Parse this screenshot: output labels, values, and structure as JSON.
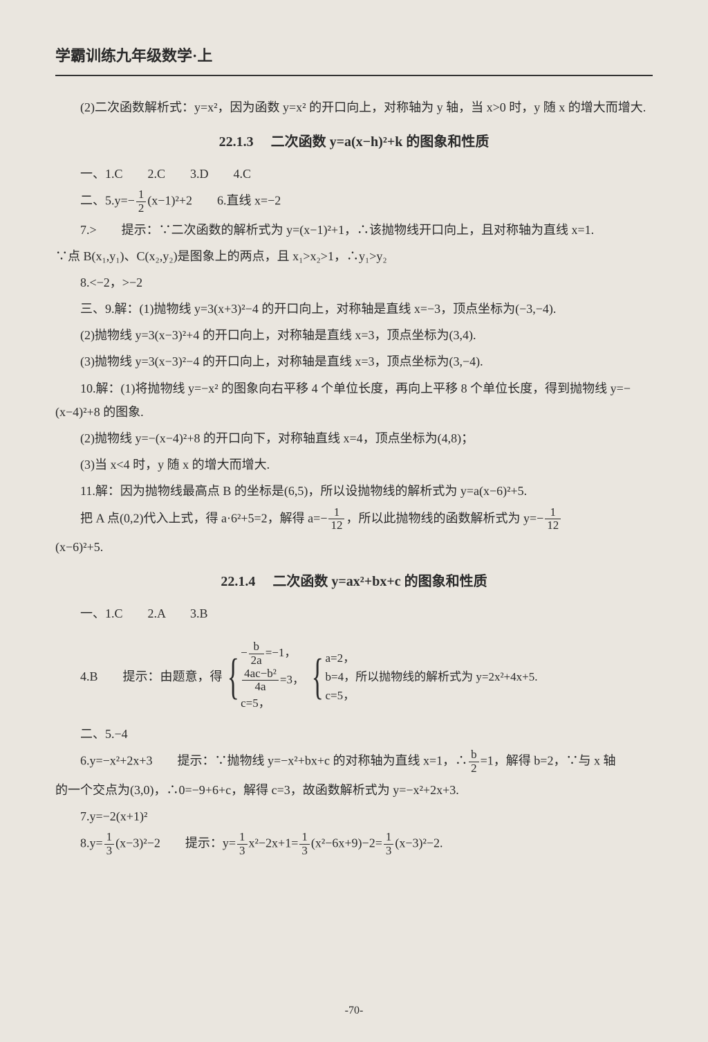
{
  "header": "学霸训练九年级数学·上",
  "p2": "(2)二次函数解析式：y=x²，因为函数 y=x² 的开口向上，对称轴为 y 轴，当 x>0 时，y 随 x 的增大而增大.",
  "sec1": "22.1.3 　二次函数 y=a(x−h)²+k 的图象和性质",
  "l1": "一、1.C　　2.C　　3.D　　4.C",
  "l2a": "二、5.y=−",
  "l2b": "(x−1)²+2　　6.直线 x=−2",
  "l3": "7.>　　提示：∵二次函数的解析式为 y=(x−1)²+1，∴该抛物线开口向上，且对称轴为直线 x=1.",
  "l3b": "∵点 B(x₁,y₁)、C(x₂,y₂)是图象上的两点，且 x₁>x₂>1，∴y₁>y₂",
  "l4": "8.<−2，>−2",
  "l5": "三、9.解：(1)抛物线 y=3(x+3)²−4 的开口向上，对称轴是直线 x=−3，顶点坐标为(−3,−4).",
  "l6": "(2)抛物线 y=3(x−3)²+4 的开口向上，对称轴是直线 x=3，顶点坐标为(3,4).",
  "l7": "(3)抛物线 y=3(x−3)²−4 的开口向上，对称轴是直线 x=3，顶点坐标为(3,−4).",
  "l8": "10.解：(1)将抛物线 y=−x² 的图象向右平移 4 个单位长度，再向上平移 8 个单位长度，得到抛物线 y=−(x−4)²+8 的图象.",
  "l9": "(2)抛物线 y=−(x−4)²+8 的开口向下，对称轴直线 x=4，顶点坐标为(4,8)；",
  "l10": "(3)当 x<4 时，y 随 x 的增大而增大.",
  "l11": "11.解：因为抛物线最高点 B 的坐标是(6,5)，所以设抛物线的解析式为 y=a(x−6)²+5.",
  "l12a": "把 A 点(0,2)代入上式，得 a·6²+5=2，解得 a=−",
  "l12b": "，所以此抛物线的函数解析式为 y=−",
  "l12c": "(x−6)²+5.",
  "sec2": "22.1.4 　二次函数 y=ax²+bx+c 的图象和性质",
  "m1": "一、1.C　　2.A　　3.B",
  "m2a": "4.B　　提示：由题意，得",
  "braceAa": "−",
  "braceAb": "=−1，",
  "braceB": "=3，",
  "braceC": "c=5，",
  "brace2a": "a=2，",
  "brace2b": "b=4，所以抛物线的解析式为 y=2x²+4x+5.",
  "brace2c": "c=5，",
  "m3": "二、5.−4",
  "m4a": "6.y=−x²+2x+3　　提示：∵抛物线 y=−x²+bx+c 的对称轴为直线 x=1，∴",
  "m4b": "=1，解得 b=2，∵与 x 轴",
  "m4c": "的一个交点为(3,0)，∴0=−9+6+c，解得 c=3，故函数解析式为 y=−x²+2x+3.",
  "m5": "7.y=−2(x+1)²",
  "m6a": "8.y=",
  "m6b": "(x−3)²−2　　提示：y=",
  "m6c": "x²−2x+1=",
  "m6d": "(x²−6x+9)−2=",
  "m6e": "(x−3)²−2.",
  "pagenum": "-70-"
}
